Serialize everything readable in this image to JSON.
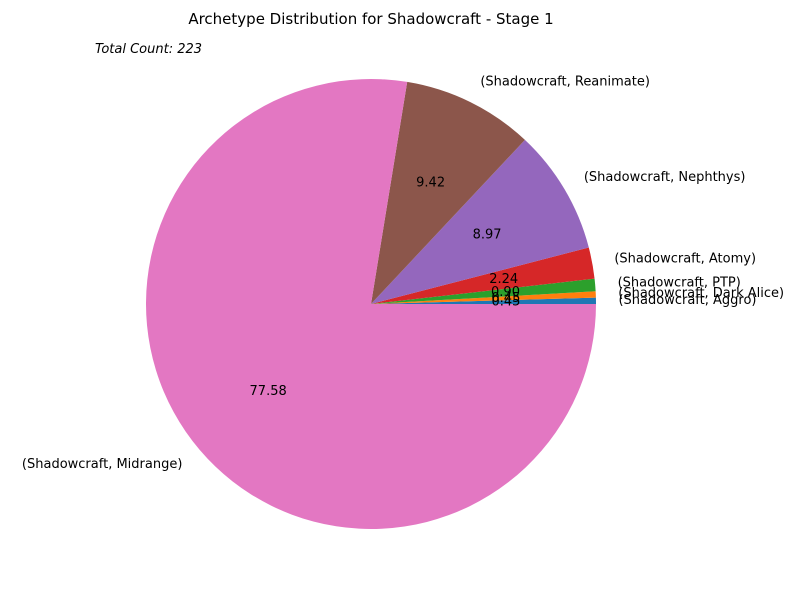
{
  "chart_data": {
    "type": "pie",
    "title": "Archetype Distribution for Shadowcraft - Stage 1",
    "annotation": "Total Count: 223",
    "slices": [
      {
        "label": "(Shadowcraft, Aggro)",
        "value": 0.45,
        "pct_label": "0.45",
        "color": "#1f77b4"
      },
      {
        "label": "(Shadowcraft, Dark Alice)",
        "value": 0.45,
        "pct_label": "0.45",
        "color": "#ff7f0e"
      },
      {
        "label": "(Shadowcraft, PTP)",
        "value": 0.9,
        "pct_label": "0.90",
        "color": "#2ca02c"
      },
      {
        "label": "(Shadowcraft, Atomy)",
        "value": 2.24,
        "pct_label": "2.24",
        "color": "#d62728"
      },
      {
        "label": "(Shadowcraft, Nephthys)",
        "value": 8.97,
        "pct_label": "8.97",
        "color": "#9467bd"
      },
      {
        "label": "(Shadowcraft, Reanimate)",
        "value": 9.42,
        "pct_label": "9.42",
        "color": "#8c564b"
      },
      {
        "label": "(Shadowcraft, Midrange)",
        "value": 77.58,
        "pct_label": "77.58",
        "color": "#e377c2"
      }
    ],
    "start_angle_deg": 0,
    "direction": "counterclockwise",
    "legend": "none"
  }
}
